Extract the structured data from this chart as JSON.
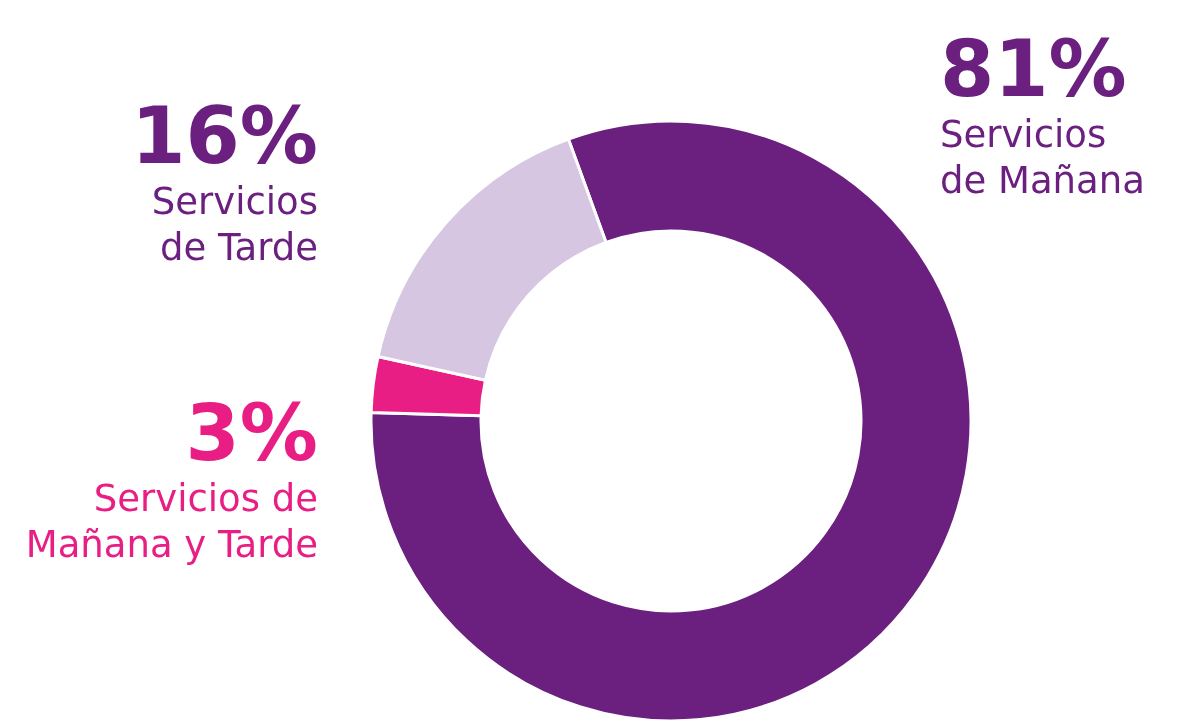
{
  "chart_data": {
    "type": "donut",
    "categories": [
      "Servicios de Mañana",
      "Servicios de Mañana y Tarde",
      "Servicios de Tarde"
    ],
    "values": [
      81,
      3,
      16
    ],
    "colors": [
      "#6b2080",
      "#e91e84",
      "#d6c6e1"
    ],
    "value_labels": [
      "81%",
      "3%",
      "16%"
    ]
  }
}
